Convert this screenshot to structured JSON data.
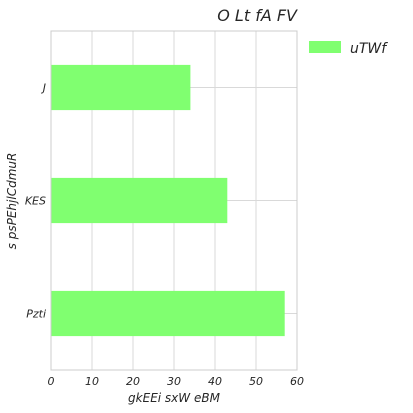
{
  "chart_data": {
    "type": "bar",
    "orientation": "horizontal",
    "title": "O Lt  fA FV",
    "xlabel": "gkEEi sxW eBM",
    "ylabel": "s psPEhjlCdmuR",
    "categories": [
      "J",
      "KES",
      "Pzti"
    ],
    "series": [
      {
        "name": "uTWf",
        "values": [
          34,
          43,
          57
        ],
        "color": "#80ff70"
      }
    ],
    "xlim": [
      0,
      60
    ],
    "xticks": [
      0,
      10,
      20,
      30,
      40,
      50,
      60
    ],
    "grid": true,
    "legend_position": "top-right-outside"
  }
}
